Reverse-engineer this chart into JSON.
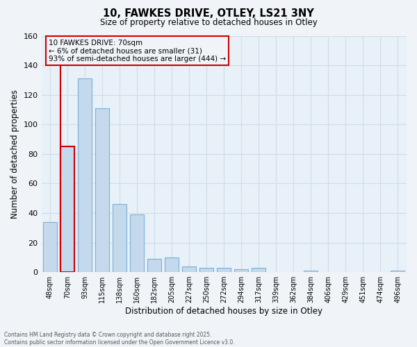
{
  "title": "10, FAWKES DRIVE, OTLEY, LS21 3NY",
  "subtitle": "Size of property relative to detached houses in Otley",
  "xlabel": "Distribution of detached houses by size in Otley",
  "ylabel": "Number of detached properties",
  "categories": [
    "48sqm",
    "70sqm",
    "93sqm",
    "115sqm",
    "138sqm",
    "160sqm",
    "182sqm",
    "205sqm",
    "227sqm",
    "250sqm",
    "272sqm",
    "294sqm",
    "317sqm",
    "339sqm",
    "362sqm",
    "384sqm",
    "406sqm",
    "429sqm",
    "451sqm",
    "474sqm",
    "496sqm"
  ],
  "values": [
    34,
    85,
    131,
    111,
    46,
    39,
    9,
    10,
    4,
    3,
    3,
    2,
    3,
    0,
    0,
    1,
    0,
    0,
    0,
    0,
    1
  ],
  "bar_color": "#c5d9ed",
  "bar_edge_color": "#7bafd4",
  "highlight_bar_index": 1,
  "highlight_bar_edge_color": "#cc0000",
  "ylim": [
    0,
    160
  ],
  "yticks": [
    0,
    20,
    40,
    60,
    80,
    100,
    120,
    140,
    160
  ],
  "annotation_title": "10 FAWKES DRIVE: 70sqm",
  "annotation_line1": "← 6% of detached houses are smaller (31)",
  "annotation_line2": "93% of semi-detached houses are larger (444) →",
  "annotation_box_edge_color": "#cc0000",
  "footer_line1": "Contains HM Land Registry data © Crown copyright and database right 2025.",
  "footer_line2": "Contains public sector information licensed under the Open Government Licence v3.0.",
  "background_color": "#f0f4f8",
  "plot_bg_color": "#e8f0f8",
  "grid_color": "#d0dce8"
}
